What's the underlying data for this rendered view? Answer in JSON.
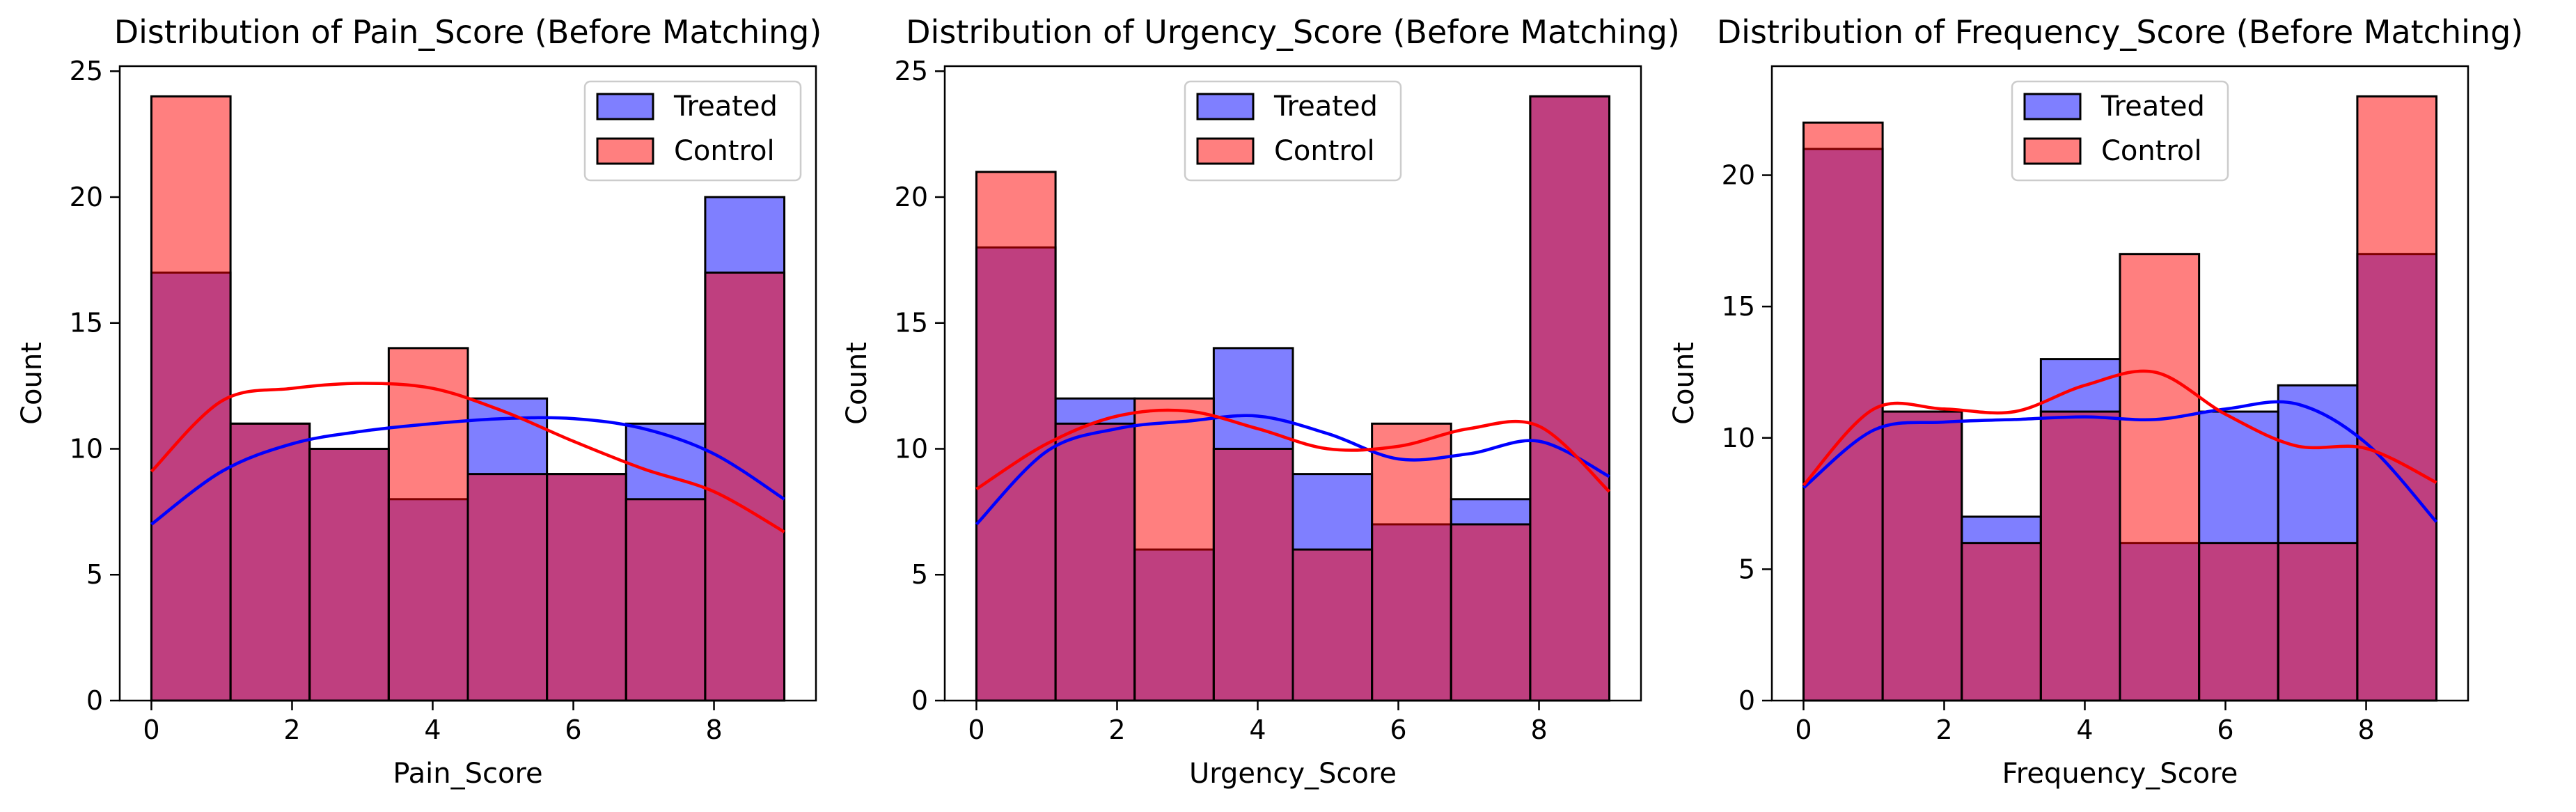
{
  "colors": {
    "treated": "#0000ff",
    "control": "#ff0000",
    "edge": "#000000",
    "background": "#ffffff"
  },
  "chart_data": [
    {
      "type": "bar",
      "title": "Distribution of Pain_Score (Before Matching)",
      "xlabel": "Pain_Score",
      "ylabel": "Count",
      "xlim": [
        -0.45,
        9.45
      ],
      "ylim": [
        0,
        25.2
      ],
      "xticks": [
        0,
        2,
        4,
        6,
        8
      ],
      "yticks": [
        0,
        5,
        10,
        15,
        20,
        25
      ],
      "bin_edges": [
        0,
        1.125,
        2.25,
        3.375,
        4.5,
        5.625,
        6.75,
        7.875,
        9
      ],
      "legend_position": "top-right",
      "series": [
        {
          "name": "Treated",
          "color": "#0000ff",
          "values": [
            17,
            11,
            10,
            8,
            12,
            9,
            11,
            20
          ],
          "kde": {
            "x": [
              0,
              1,
              2,
              3,
              4,
              5,
              6,
              7,
              8,
              9
            ],
            "y": [
              7.0,
              9.1,
              10.2,
              10.7,
              11.0,
              11.2,
              11.2,
              10.8,
              9.8,
              8.0
            ]
          }
        },
        {
          "name": "Control",
          "color": "#ff0000",
          "values": [
            24,
            11,
            10,
            14,
            9,
            9,
            8,
            17
          ],
          "kde": {
            "x": [
              0,
              1,
              2,
              3,
              4,
              5,
              6,
              7,
              8,
              9
            ],
            "y": [
              9.1,
              11.9,
              12.4,
              12.6,
              12.4,
              11.5,
              10.3,
              9.2,
              8.3,
              6.7
            ]
          }
        }
      ]
    },
    {
      "type": "bar",
      "title": "Distribution of Urgency_Score (Before Matching)",
      "xlabel": "Urgency_Score",
      "ylabel": "Count",
      "xlim": [
        -0.45,
        9.45
      ],
      "ylim": [
        0,
        25.2
      ],
      "xticks": [
        0,
        2,
        4,
        6,
        8
      ],
      "yticks": [
        0,
        5,
        10,
        15,
        20,
        25
      ],
      "bin_edges": [
        0,
        1.125,
        2.25,
        3.375,
        4.5,
        5.625,
        6.75,
        7.875,
        9
      ],
      "legend_position": "top-center",
      "series": [
        {
          "name": "Treated",
          "color": "#0000ff",
          "values": [
            18,
            12,
            6,
            14,
            9,
            7,
            8,
            24
          ],
          "kde": {
            "x": [
              0,
              1,
              2,
              3,
              4,
              5,
              6,
              7,
              8,
              9
            ],
            "y": [
              7.0,
              9.9,
              10.8,
              11.1,
              11.3,
              10.6,
              9.6,
              9.8,
              10.3,
              8.9
            ]
          }
        },
        {
          "name": "Control",
          "color": "#ff0000",
          "values": [
            21,
            11,
            12,
            10,
            6,
            11,
            7,
            24
          ],
          "kde": {
            "x": [
              0,
              1,
              2,
              3,
              4,
              5,
              6,
              7,
              8,
              9
            ],
            "y": [
              8.4,
              10.2,
              11.3,
              11.5,
              10.8,
              10.0,
              10.1,
              10.8,
              10.9,
              8.3
            ]
          }
        }
      ]
    },
    {
      "type": "bar",
      "title": "Distribution of Frequency_Score (Before Matching)",
      "xlabel": "Frequency_Score",
      "ylabel": "Count",
      "xlim": [
        -0.45,
        9.45
      ],
      "ylim": [
        0,
        24.15
      ],
      "xticks": [
        0,
        2,
        4,
        6,
        8
      ],
      "yticks": [
        0,
        5,
        10,
        15,
        20
      ],
      "bin_edges": [
        0,
        1.125,
        2.25,
        3.375,
        4.5,
        5.625,
        6.75,
        7.875,
        9
      ],
      "legend_position": "top-center",
      "series": [
        {
          "name": "Treated",
          "color": "#0000ff",
          "values": [
            21,
            11,
            7,
            13,
            6,
            11,
            12,
            17
          ],
          "kde": {
            "x": [
              0,
              1,
              2,
              3,
              4,
              5,
              6,
              7,
              8,
              9
            ],
            "y": [
              8.1,
              10.3,
              10.6,
              10.7,
              10.8,
              10.7,
              11.1,
              11.3,
              9.8,
              6.8
            ]
          }
        },
        {
          "name": "Control",
          "color": "#ff0000",
          "values": [
            22,
            11,
            6,
            11,
            17,
            6,
            6,
            23
          ],
          "kde": {
            "x": [
              0,
              1,
              2,
              3,
              4,
              5,
              6,
              7,
              8,
              9
            ],
            "y": [
              8.2,
              11.1,
              11.1,
              11.0,
              12.0,
              12.5,
              10.9,
              9.7,
              9.6,
              8.3
            ]
          }
        }
      ]
    }
  ]
}
